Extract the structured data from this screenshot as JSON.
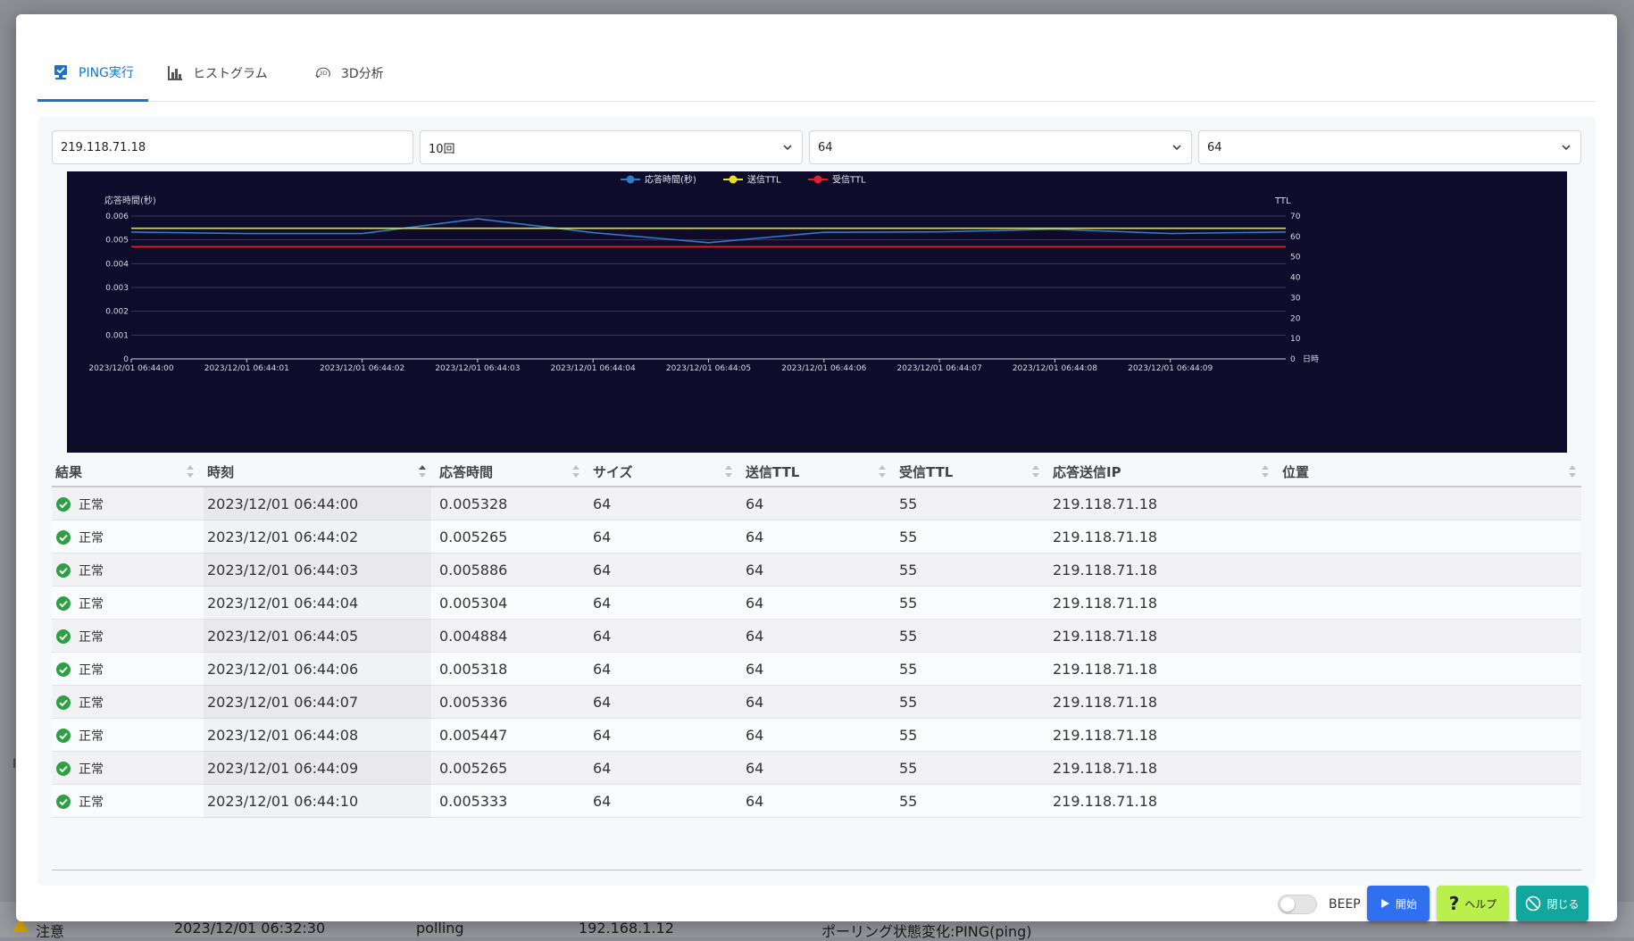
{
  "background": {
    "row_level": "注意",
    "row_time": "2023/12/01 06:32:30",
    "row_type": "polling",
    "row_ip": "192.168.1.12",
    "row_message": "ポーリング状態変化:PING(ping)"
  },
  "tabs": [
    {
      "label": "PING実行",
      "icon": "monitor-check-icon"
    },
    {
      "label": "ヒストグラム",
      "icon": "bar-chart-icon"
    },
    {
      "label": "3D分析",
      "icon": "3d-rotate-icon"
    }
  ],
  "controls": {
    "target_ip": "219.118.71.18",
    "count": "10回",
    "size": "64",
    "ttl": "64"
  },
  "chart_data": {
    "type": "line",
    "legend": [
      "応答時間(秒)",
      "送信TTL",
      "受信TTL"
    ],
    "legend_placement": "top-center",
    "ylabel_left": "応答時間(秒)",
    "ylabel_right": "TTL",
    "xlabel": "日時",
    "ylim_left": [
      0,
      0.006
    ],
    "ylim_right": [
      0,
      70
    ],
    "yticks_left": [
      "0",
      "0.001",
      "0.002",
      "0.003",
      "0.004",
      "0.005",
      "0.006"
    ],
    "yticks_right": [
      "0",
      "10",
      "20",
      "30",
      "40",
      "50",
      "60",
      "70"
    ],
    "x": [
      "2023/12/01 06:44:00",
      "2023/12/01 06:44:01",
      "2023/12/01 06:44:02",
      "2023/12/01 06:44:03",
      "2023/12/01 06:44:04",
      "2023/12/01 06:44:05",
      "2023/12/01 06:44:06",
      "2023/12/01 06:44:07",
      "2023/12/01 06:44:08",
      "2023/12/01 06:44:09",
      "2023/12/01 06:44:10"
    ],
    "xtick_labels": [
      "2023/12/01 06:44:00",
      "2023/12/01 06:44:01",
      "2023/12/01 06:44:02",
      "2023/12/01 06:44:03",
      "2023/12/01 06:44:04",
      "2023/12/01 06:44:05",
      "2023/12/01 06:44:06",
      "2023/12/01 06:44:07",
      "2023/12/01 06:44:08",
      "2023/12/01 06:44:09"
    ],
    "series": [
      {
        "name": "応答時間(秒)",
        "axis": "left",
        "color": "#2e7cc4",
        "values": [
          0.005328,
          0.005265,
          0.005265,
          0.005886,
          0.005304,
          0.004884,
          0.005318,
          0.005336,
          0.005447,
          0.005265,
          0.005333
        ]
      },
      {
        "name": "送信TTL",
        "axis": "right",
        "color": "#e6e21e",
        "values": [
          64,
          64,
          64,
          64,
          64,
          64,
          64,
          64,
          64,
          64,
          64
        ]
      },
      {
        "name": "受信TTL",
        "axis": "right",
        "color": "#e0202a",
        "values": [
          55,
          55,
          55,
          55,
          55,
          55,
          55,
          55,
          55,
          55,
          55
        ]
      }
    ],
    "grid": true
  },
  "table": {
    "columns": [
      "結果",
      "時刻",
      "応答時間",
      "サイズ",
      "送信TTL",
      "受信TTL",
      "応答送信IP",
      "位置"
    ],
    "rows": [
      {
        "result": "正常",
        "time": "2023/12/01 06:44:00",
        "rtt": "0.005328",
        "size": "64",
        "sttl": "64",
        "rttl": "55",
        "ip": "219.118.71.18",
        "loc": ""
      },
      {
        "result": "正常",
        "time": "2023/12/01 06:44:02",
        "rtt": "0.005265",
        "size": "64",
        "sttl": "64",
        "rttl": "55",
        "ip": "219.118.71.18",
        "loc": ""
      },
      {
        "result": "正常",
        "time": "2023/12/01 06:44:03",
        "rtt": "0.005886",
        "size": "64",
        "sttl": "64",
        "rttl": "55",
        "ip": "219.118.71.18",
        "loc": ""
      },
      {
        "result": "正常",
        "time": "2023/12/01 06:44:04",
        "rtt": "0.005304",
        "size": "64",
        "sttl": "64",
        "rttl": "55",
        "ip": "219.118.71.18",
        "loc": ""
      },
      {
        "result": "正常",
        "time": "2023/12/01 06:44:05",
        "rtt": "0.004884",
        "size": "64",
        "sttl": "64",
        "rttl": "55",
        "ip": "219.118.71.18",
        "loc": ""
      },
      {
        "result": "正常",
        "time": "2023/12/01 06:44:06",
        "rtt": "0.005318",
        "size": "64",
        "sttl": "64",
        "rttl": "55",
        "ip": "219.118.71.18",
        "loc": ""
      },
      {
        "result": "正常",
        "time": "2023/12/01 06:44:07",
        "rtt": "0.005336",
        "size": "64",
        "sttl": "64",
        "rttl": "55",
        "ip": "219.118.71.18",
        "loc": ""
      },
      {
        "result": "正常",
        "time": "2023/12/01 06:44:08",
        "rtt": "0.005447",
        "size": "64",
        "sttl": "64",
        "rttl": "55",
        "ip": "219.118.71.18",
        "loc": ""
      },
      {
        "result": "正常",
        "time": "2023/12/01 06:44:09",
        "rtt": "0.005265",
        "size": "64",
        "sttl": "64",
        "rttl": "55",
        "ip": "219.118.71.18",
        "loc": ""
      },
      {
        "result": "正常",
        "time": "2023/12/01 06:44:10",
        "rtt": "0.005333",
        "size": "64",
        "sttl": "64",
        "rttl": "55",
        "ip": "219.118.71.18",
        "loc": ""
      }
    ]
  },
  "footer": {
    "beep_label": "BEEP",
    "beep_on": false,
    "start_label": "開始",
    "help_label": "ヘルプ",
    "close_label": "閉じる"
  },
  "colors": {
    "accent": "#1a73c7",
    "start": "#2f6ff0",
    "help": "#b9f04b",
    "close": "#12a79e",
    "ok": "#2ea043",
    "chart_bg": "#0f0c2b"
  }
}
